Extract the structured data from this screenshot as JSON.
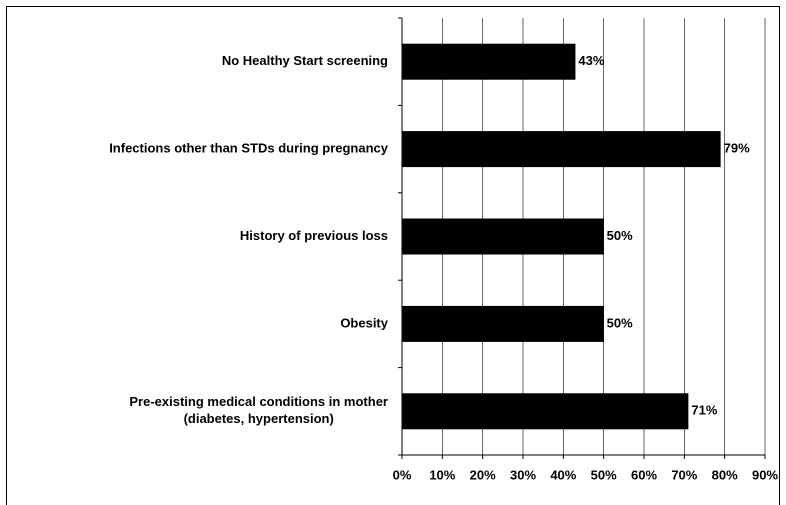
{
  "chart_data": {
    "type": "bar",
    "orientation": "horizontal",
    "categories": [
      "No Healthy Start screening",
      "Infections other than STDs during pregnancy",
      "History of previous loss",
      "Obesity",
      [
        "Pre-existing medical conditions in mother",
        "(diabetes, hypertension)"
      ]
    ],
    "values": [
      43,
      79,
      50,
      50,
      71
    ],
    "value_labels": [
      "43%",
      "79%",
      "50%",
      "50%",
      "71%"
    ],
    "color": "#000000",
    "xlim": [
      0,
      90
    ],
    "xticks": [
      {
        "value": 0,
        "label": "0%"
      },
      {
        "value": 10,
        "label": "10%"
      },
      {
        "value": 20,
        "label": "20%"
      },
      {
        "value": 30,
        "label": "30%"
      },
      {
        "value": 40,
        "label": "40%"
      },
      {
        "value": 50,
        "label": "50%"
      },
      {
        "value": 60,
        "label": "60%"
      },
      {
        "value": 70,
        "label": "70%"
      },
      {
        "value": 80,
        "label": "80%"
      },
      {
        "value": 90,
        "label": "90%"
      }
    ],
    "grid": true
  }
}
